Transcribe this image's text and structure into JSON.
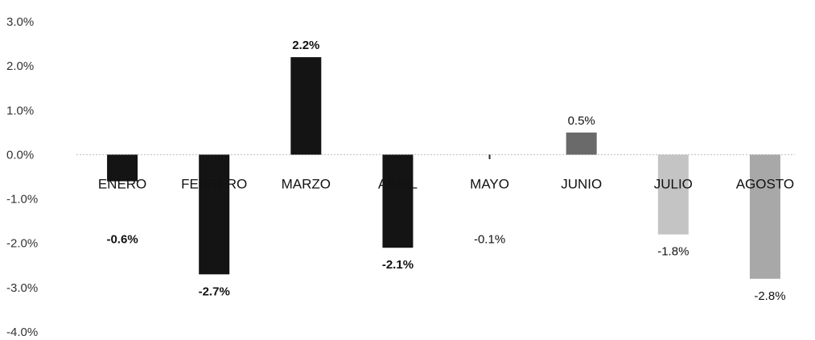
{
  "chart_data": {
    "type": "bar",
    "title": "",
    "xlabel": "",
    "ylabel": "",
    "ylim": [
      -4.0,
      3.0
    ],
    "yticks": [
      "3.0%",
      "2.0%",
      "1.0%",
      "0.0%",
      "-1.0%",
      "-2.0%",
      "-3.0%",
      "-4.0%"
    ],
    "grid": false,
    "legend": "none",
    "categories": [
      "ENERO",
      "FEBRERO",
      "MARZO",
      "ABRIL",
      "MAYO",
      "JUNIO",
      "JULIO",
      "AGOSTO"
    ],
    "values": [
      -0.6,
      -2.7,
      2.2,
      -2.1,
      -0.1,
      0.5,
      -1.8,
      -2.8
    ],
    "data_labels": [
      "-0.6%",
      "-2.7%",
      "2.2%",
      "-2.1%",
      "-0.1%",
      "0.5%",
      "-1.8%",
      "-2.8%"
    ],
    "bar_colors": [
      "#141414",
      "#141414",
      "#141414",
      "#141414",
      "#2a2a2a",
      "#6a6a6a",
      "#c4c4c4",
      "#a8a8a8"
    ]
  }
}
